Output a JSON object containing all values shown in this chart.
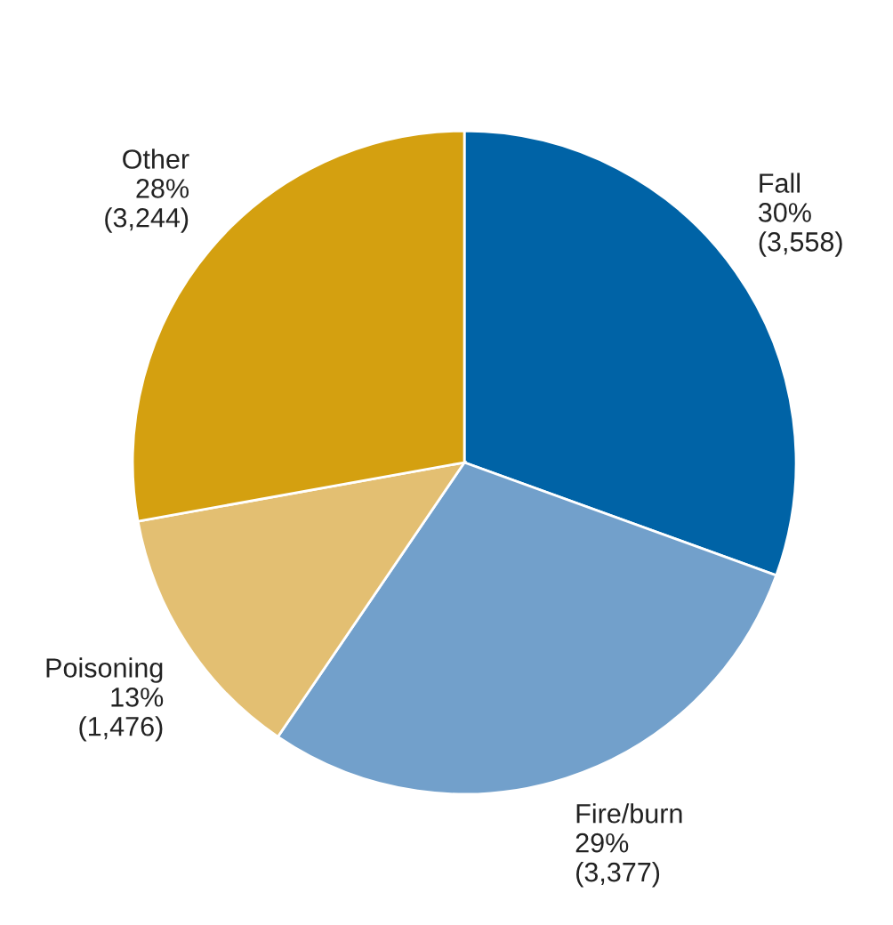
{
  "chart_data": {
    "type": "pie",
    "categories": [
      "Fall",
      "Fire/burn",
      "Poisoning",
      "Other"
    ],
    "values": [
      3558,
      3377,
      1476,
      3244
    ],
    "value_labels": [
      "30%\n(3,558)",
      "29%\n(3,377)",
      "13%\n(1,476)",
      "28%\n(3,244)"
    ],
    "colors": [
      "#0063a6",
      "#72a0cb",
      "#e3bf72",
      "#d4a010"
    ],
    "legend": false
  }
}
